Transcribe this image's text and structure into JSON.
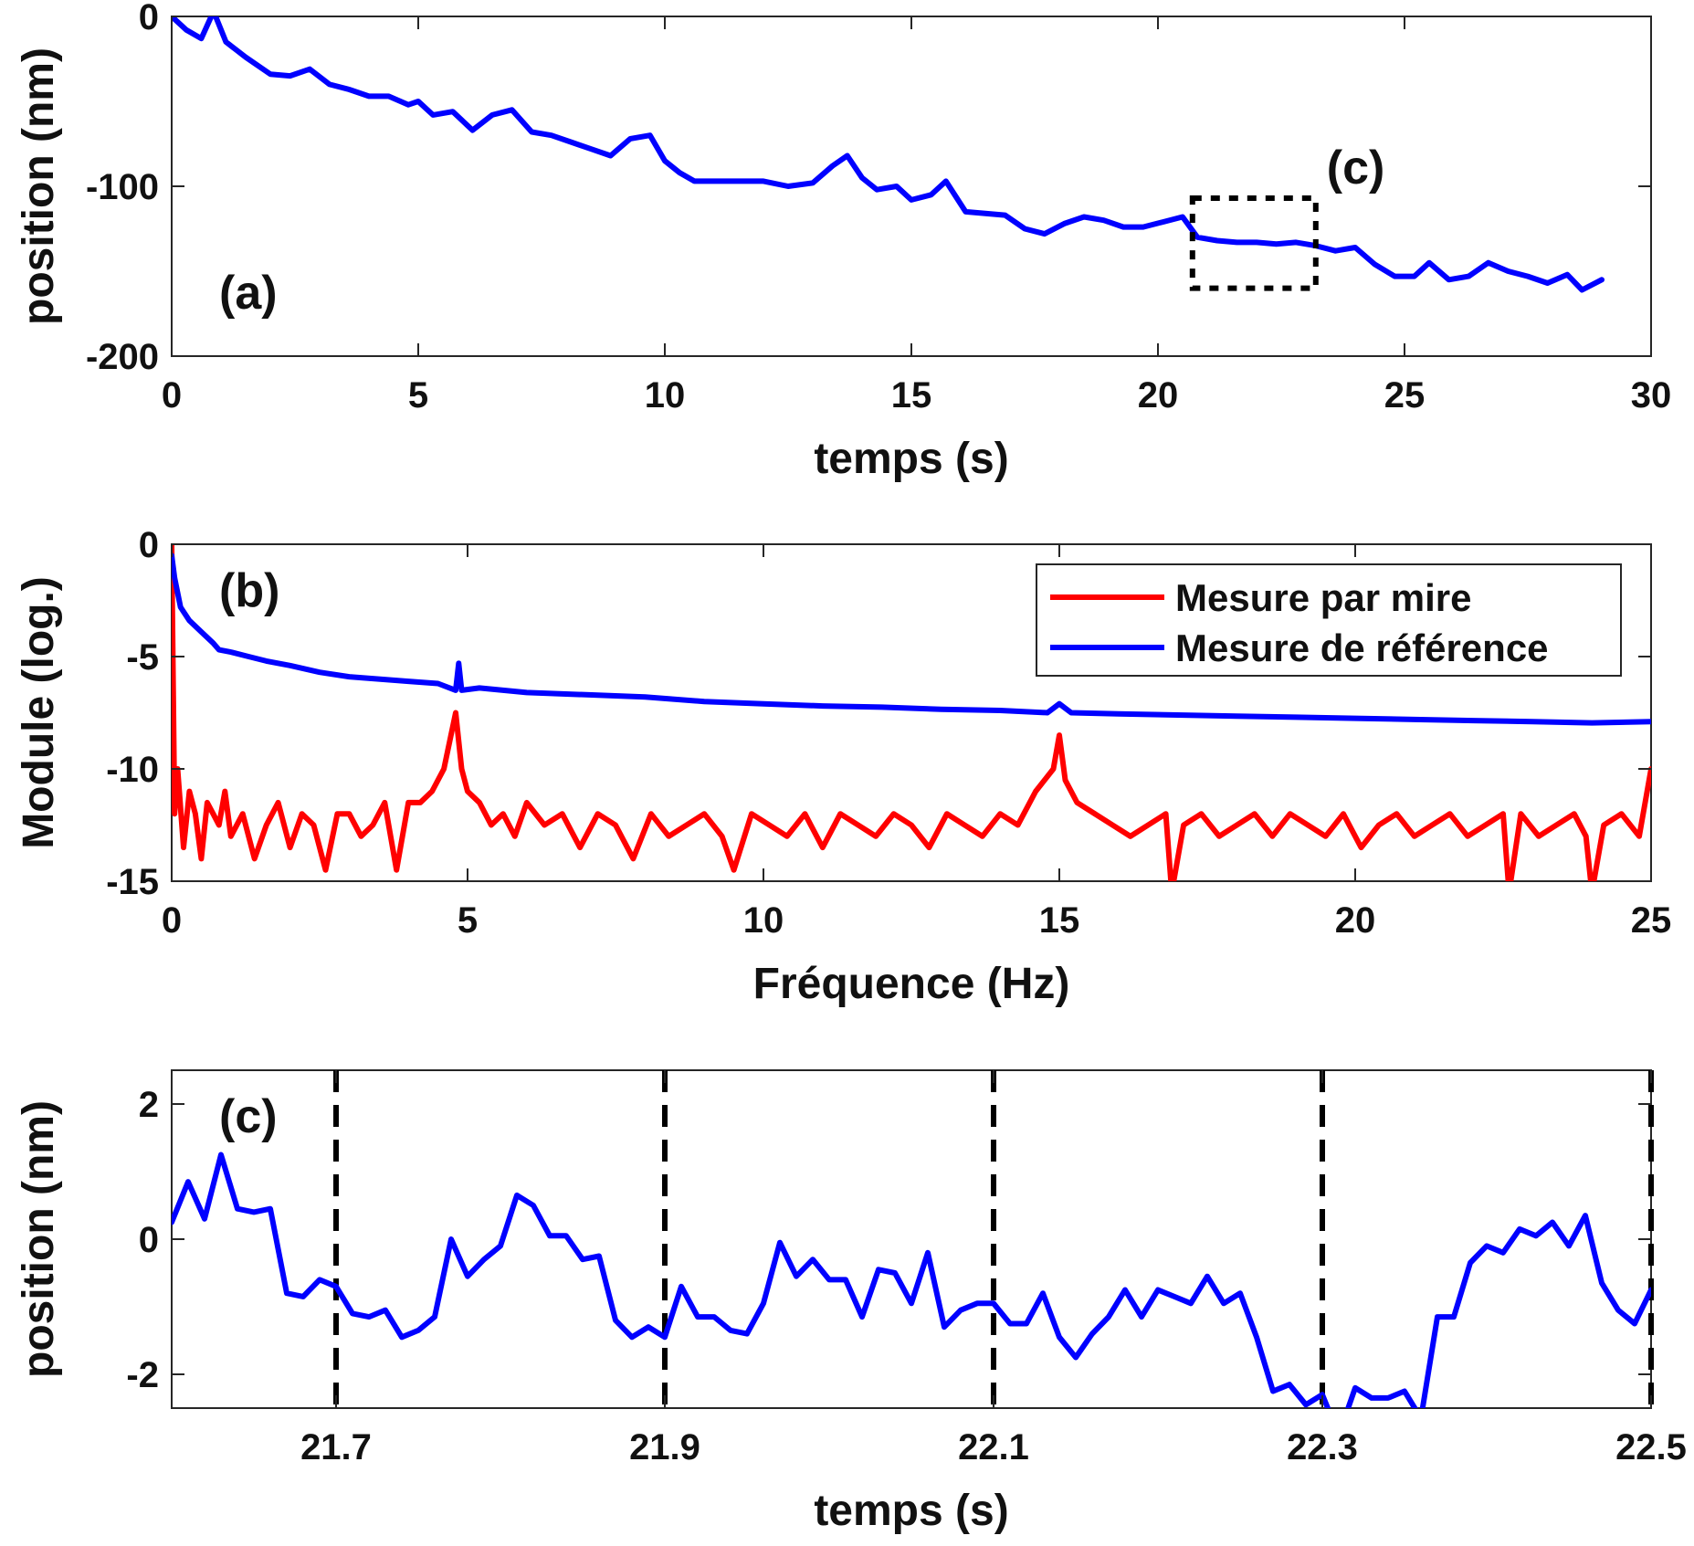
{
  "chart_data": [
    {
      "panel": "(a)",
      "type": "line",
      "xlabel": "temps (s)",
      "ylabel": "position (nm)",
      "xlim": [
        0,
        30
      ],
      "ylim": [
        -200,
        0
      ],
      "xticks": [
        0,
        5,
        10,
        15,
        20,
        25,
        30
      ],
      "yticks": [
        0,
        -100,
        -200
      ],
      "annotation": {
        "label": "(c)",
        "box_x": [
          20.7,
          23.2
        ],
        "box_y": [
          -160,
          -107
        ]
      },
      "series": [
        {
          "color": "#0000ff",
          "x": [
            0,
            0.3,
            0.6,
            0.85,
            1.1,
            1.5,
            2.0,
            2.4,
            2.8,
            3.2,
            3.6,
            4.0,
            4.4,
            4.8,
            5.0,
            5.3,
            5.7,
            6.1,
            6.5,
            6.9,
            7.3,
            7.7,
            8.1,
            8.5,
            8.9,
            9.3,
            9.7,
            10.0,
            10.3,
            10.6,
            11.0,
            11.5,
            12.0,
            12.5,
            13.0,
            13.4,
            13.7,
            14.0,
            14.3,
            14.7,
            15.0,
            15.4,
            15.7,
            16.1,
            16.5,
            16.9,
            17.3,
            17.7,
            18.1,
            18.5,
            18.9,
            19.3,
            19.7,
            20.1,
            20.5,
            20.8,
            21.2,
            21.6,
            22.0,
            22.4,
            22.8,
            23.2,
            23.6,
            24.0,
            24.4,
            24.8,
            25.2,
            25.5,
            25.9,
            26.3,
            26.7,
            27.1,
            27.5,
            27.9,
            28.3,
            28.6,
            29.0
          ],
          "y": [
            0,
            -8,
            -13,
            3,
            -15,
            -24,
            -34,
            -35,
            -31,
            -40,
            -43,
            -47,
            -47,
            -52,
            -50,
            -58,
            -56,
            -67,
            -58,
            -55,
            -68,
            -70,
            -74,
            -78,
            -82,
            -72,
            -70,
            -85,
            -92,
            -97,
            -97,
            -97,
            -97,
            -100,
            -98,
            -88,
            -82,
            -95,
            -102,
            -100,
            -108,
            -105,
            -97,
            -115,
            -116,
            -117,
            -125,
            -128,
            -122,
            -118,
            -120,
            -124,
            -124,
            -121,
            -118,
            -130,
            -132,
            -133,
            -133,
            -134,
            -133,
            -135,
            -138,
            -136,
            -146,
            -153,
            -153,
            -145,
            -155,
            -153,
            -145,
            -150,
            -153,
            -157,
            -152,
            -161,
            -155
          ]
        }
      ]
    },
    {
      "panel": "(b)",
      "type": "line",
      "xlabel": "Fréquence (Hz)",
      "ylabel": "Module (log.)",
      "xlim": [
        0,
        25
      ],
      "ylim": [
        -15,
        0
      ],
      "xticks": [
        0,
        5,
        10,
        15,
        20,
        25
      ],
      "yticks": [
        0,
        -5,
        -10,
        -15
      ],
      "legend": {
        "position": "top-right"
      },
      "series": [
        {
          "name": "Mesure par mire",
          "color": "#ff0000",
          "x": [
            0,
            0.05,
            0.1,
            0.2,
            0.3,
            0.4,
            0.5,
            0.6,
            0.7,
            0.8,
            0.9,
            1.0,
            1.2,
            1.4,
            1.6,
            1.8,
            2.0,
            2.2,
            2.4,
            2.6,
            2.8,
            3.0,
            3.2,
            3.4,
            3.6,
            3.8,
            4.0,
            4.2,
            4.4,
            4.6,
            4.8,
            4.9,
            5.0,
            5.2,
            5.4,
            5.6,
            5.8,
            6.0,
            6.3,
            6.6,
            6.9,
            7.2,
            7.5,
            7.8,
            8.1,
            8.4,
            8.7,
            9.0,
            9.3,
            9.5,
            9.8,
            10.1,
            10.4,
            10.7,
            11.0,
            11.3,
            11.6,
            11.9,
            12.2,
            12.5,
            12.8,
            13.1,
            13.4,
            13.7,
            14.0,
            14.3,
            14.6,
            14.9,
            15.0,
            15.1,
            15.3,
            15.6,
            15.9,
            16.2,
            16.5,
            16.8,
            16.9,
            17.1,
            17.4,
            17.7,
            18.0,
            18.3,
            18.6,
            18.9,
            19.2,
            19.5,
            19.8,
            20.1,
            20.4,
            20.7,
            21.0,
            21.3,
            21.6,
            21.9,
            22.2,
            22.5,
            22.6,
            22.8,
            23.1,
            23.4,
            23.7,
            23.9,
            24.0,
            24.2,
            24.5,
            24.8,
            25.0
          ],
          "y": [
            0,
            -12,
            -10,
            -13.5,
            -11,
            -12,
            -14,
            -11.5,
            -12,
            -12.5,
            -11,
            -13,
            -12,
            -14,
            -12.5,
            -11.5,
            -13.5,
            -12,
            -12.5,
            -14.5,
            -12,
            -12,
            -13,
            -12.5,
            -11.5,
            -14.5,
            -11.5,
            -11.5,
            -11,
            -10,
            -7.5,
            -10,
            -11,
            -11.5,
            -12.5,
            -12,
            -13,
            -11.5,
            -12.5,
            -12,
            -13.5,
            -12,
            -12.5,
            -14,
            -12,
            -13,
            -12.5,
            -12,
            -13,
            -14.5,
            -12,
            -12.5,
            -13,
            -12,
            -13.5,
            -12,
            -12.5,
            -13,
            -12,
            -12.5,
            -13.5,
            -12,
            -12.5,
            -13,
            -12,
            -12.5,
            -11,
            -10,
            -8.5,
            -10.5,
            -11.5,
            -12,
            -12.5,
            -13,
            -12.5,
            -12,
            -15.5,
            -12.5,
            -12,
            -13,
            -12.5,
            -12,
            -13,
            -12,
            -12.5,
            -13,
            -12,
            -13.5,
            -12.5,
            -12,
            -13,
            -12.5,
            -12,
            -13,
            -12.5,
            -12,
            -15.5,
            -12,
            -13,
            -12.5,
            -12,
            -13,
            -15.5,
            -12.5,
            -12,
            -13,
            -10
          ]
        },
        {
          "name": "Mesure de référence",
          "color": "#0000ff",
          "x": [
            0,
            0.05,
            0.15,
            0.3,
            0.5,
            0.7,
            0.8,
            1.0,
            1.3,
            1.6,
            2.0,
            2.5,
            3.0,
            3.5,
            4.0,
            4.5,
            4.8,
            4.85,
            4.9,
            5.2,
            5.6,
            6.0,
            7.0,
            8.0,
            9.0,
            10.0,
            11.0,
            12.0,
            13.0,
            14.0,
            14.8,
            15.0,
            15.2,
            16.0,
            17.0,
            18.0,
            19.0,
            20.0,
            21.0,
            22.0,
            23.0,
            24.0,
            25.0
          ],
          "y": [
            -0.5,
            -1.5,
            -2.8,
            -3.4,
            -3.9,
            -4.4,
            -4.7,
            -4.8,
            -5.0,
            -5.2,
            -5.4,
            -5.7,
            -5.9,
            -6.0,
            -6.1,
            -6.2,
            -6.5,
            -5.3,
            -6.5,
            -6.4,
            -6.5,
            -6.6,
            -6.7,
            -6.8,
            -7.0,
            -7.1,
            -7.2,
            -7.25,
            -7.35,
            -7.4,
            -7.5,
            -7.1,
            -7.5,
            -7.55,
            -7.6,
            -7.65,
            -7.7,
            -7.75,
            -7.8,
            -7.85,
            -7.9,
            -7.95,
            -7.9
          ]
        }
      ]
    },
    {
      "panel": "(c)",
      "type": "line",
      "xlabel": "temps (s)",
      "ylabel": "position (nm)",
      "xlim": [
        21.6,
        22.5
      ],
      "ylim": [
        -2.5,
        2.5
      ],
      "xticks": [
        21.7,
        21.9,
        22.1,
        22.3,
        22.5
      ],
      "yticks": [
        2,
        0,
        -2
      ],
      "vlines": [
        21.7,
        21.9,
        22.1,
        22.3,
        22.5
      ],
      "series": [
        {
          "color": "#0000ff",
          "x": [
            21.6,
            21.61,
            21.62,
            21.63,
            21.64,
            21.65,
            21.66,
            21.67,
            21.68,
            21.69,
            21.7,
            21.71,
            21.72,
            21.73,
            21.74,
            21.75,
            21.76,
            21.77,
            21.78,
            21.79,
            21.8,
            21.81,
            21.82,
            21.83,
            21.84,
            21.85,
            21.86,
            21.87,
            21.88,
            21.89,
            21.9,
            21.91,
            21.92,
            21.93,
            21.94,
            21.95,
            21.96,
            21.97,
            21.98,
            21.99,
            22.0,
            22.01,
            22.02,
            22.03,
            22.04,
            22.05,
            22.06,
            22.07,
            22.08,
            22.09,
            22.1,
            22.11,
            22.12,
            22.13,
            22.14,
            22.15,
            22.16,
            22.17,
            22.18,
            22.19,
            22.2,
            22.21,
            22.22,
            22.23,
            22.24,
            22.25,
            22.26,
            22.27,
            22.28,
            22.29,
            22.3,
            22.31,
            22.32,
            22.33,
            22.34,
            22.35,
            22.36,
            22.37,
            22.38,
            22.39,
            22.4,
            22.41,
            22.42,
            22.43,
            22.44,
            22.45,
            22.46,
            22.47,
            22.48,
            22.49,
            22.5
          ],
          "y": [
            0.25,
            0.85,
            0.3,
            1.25,
            0.45,
            0.4,
            0.45,
            -0.8,
            -0.85,
            -0.6,
            -0.7,
            -1.1,
            -1.15,
            -1.05,
            -1.45,
            -1.35,
            -1.15,
            0.0,
            -0.55,
            -0.3,
            -0.1,
            0.65,
            0.5,
            0.05,
            0.05,
            -0.3,
            -0.25,
            -1.2,
            -1.45,
            -1.3,
            -1.45,
            -0.7,
            -1.15,
            -1.15,
            -1.35,
            -1.4,
            -0.95,
            -0.05,
            -0.55,
            -0.3,
            -0.6,
            -0.6,
            -1.15,
            -0.45,
            -0.5,
            -0.95,
            -0.2,
            -1.3,
            -1.05,
            -0.95,
            -0.95,
            -1.25,
            -1.25,
            -0.8,
            -1.45,
            -1.75,
            -1.4,
            -1.15,
            -0.75,
            -1.15,
            -0.75,
            -0.85,
            -0.95,
            -0.55,
            -0.95,
            -0.8,
            -1.45,
            -2.25,
            -2.15,
            -2.45,
            -2.3,
            -2.9,
            -2.2,
            -2.35,
            -2.35,
            -2.25,
            -2.65,
            -1.15,
            -1.15,
            -0.35,
            -0.1,
            -0.2,
            0.15,
            0.05,
            0.25,
            -0.1,
            0.35,
            -0.65,
            -1.05,
            -1.25,
            -0.75
          ]
        }
      ]
    }
  ]
}
